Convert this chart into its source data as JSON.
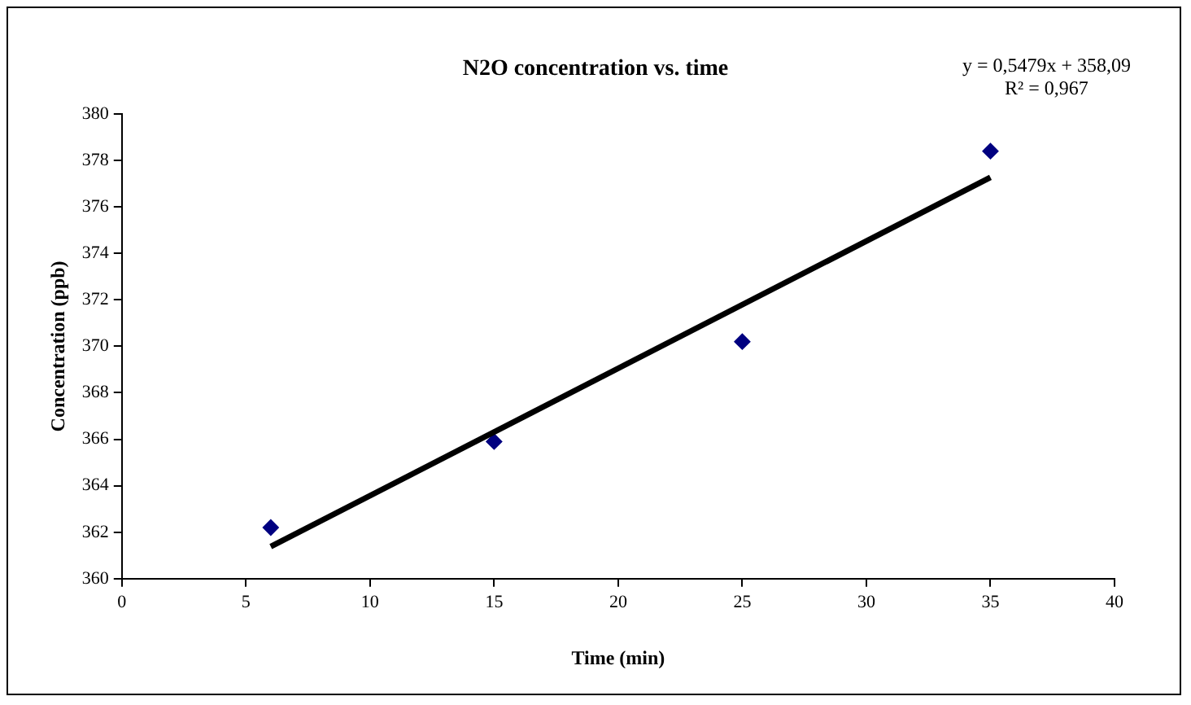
{
  "chart_data": {
    "type": "scatter",
    "title": "N2O concentration vs. time",
    "xlabel": "Time (min)",
    "ylabel": "Concentration (ppb)",
    "x": [
      6,
      15,
      25,
      35
    ],
    "series": [
      {
        "color": "#000080",
        "marker": "diamond",
        "values": [
          362.2,
          365.9,
          370.2,
          378.4
        ]
      },
      {
        "type": "line",
        "color": "#000000",
        "marker": "none",
        "x": [
          6,
          35
        ],
        "values": [
          361.38,
          377.27
        ]
      }
    ],
    "xlim": [
      0,
      40
    ],
    "xticks": [
      0,
      5,
      10,
      15,
      20,
      25,
      30,
      35,
      40
    ],
    "ylim": [
      360,
      380
    ],
    "yticks": [
      360,
      362,
      364,
      366,
      368,
      370,
      372,
      374,
      376,
      378,
      380
    ],
    "grid": false,
    "legend": false,
    "annotations": [
      "y = 0,5479x + 358,09",
      "R² = 0,967"
    ]
  }
}
